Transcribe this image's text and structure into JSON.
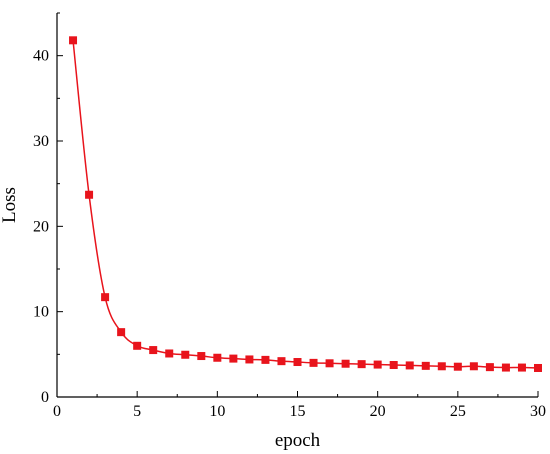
{
  "chart_data": {
    "type": "line",
    "title": "",
    "xlabel": "epoch",
    "ylabel": "Loss",
    "xlim": [
      0,
      30
    ],
    "ylim": [
      0,
      45
    ],
    "xticks": [
      0,
      5,
      10,
      15,
      20,
      25,
      30
    ],
    "yticks": [
      0,
      10,
      20,
      30,
      40
    ],
    "grid": false,
    "legend": "none",
    "series": [
      {
        "color": "#e8141c",
        "marker": "square",
        "x": [
          1,
          2,
          3,
          4,
          5,
          6,
          7,
          8,
          9,
          10,
          11,
          12,
          13,
          14,
          15,
          16,
          17,
          18,
          19,
          20,
          21,
          22,
          23,
          24,
          25,
          26,
          27,
          28,
          29,
          30
        ],
        "y": [
          41.8,
          23.7,
          11.7,
          7.6,
          6.0,
          5.5,
          5.1,
          4.95,
          4.8,
          4.6,
          4.5,
          4.4,
          4.35,
          4.2,
          4.1,
          4.0,
          3.95,
          3.9,
          3.85,
          3.8,
          3.75,
          3.7,
          3.65,
          3.6,
          3.55,
          3.6,
          3.5,
          3.45,
          3.45,
          3.4
        ]
      }
    ]
  }
}
